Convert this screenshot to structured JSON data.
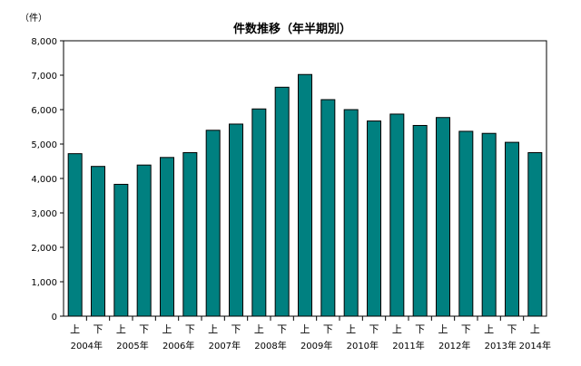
{
  "chart_data": {
    "type": "bar",
    "title": "件数推移（年半期別）",
    "ylabel": "（件）",
    "xlabel": "",
    "ylim": [
      0,
      8000
    ],
    "y_ticks": [
      "0",
      "1,000",
      "2,000",
      "3,000",
      "4,000",
      "5,000",
      "6,000",
      "7,000",
      "8,000"
    ],
    "half_labels": [
      "上",
      "下",
      "上",
      "下",
      "上",
      "下",
      "上",
      "下",
      "上",
      "下",
      "上",
      "下",
      "上",
      "下",
      "上",
      "下",
      "上",
      "下",
      "上",
      "下",
      "上"
    ],
    "year_labels": [
      "2004年",
      "2005年",
      "2006年",
      "2007年",
      "2008年",
      "2009年",
      "2010年",
      "2011年",
      "2012年",
      "2013年",
      "2014年"
    ],
    "values": [
      4720,
      4350,
      3830,
      4390,
      4610,
      4750,
      5400,
      5580,
      6020,
      6650,
      7020,
      6290,
      6000,
      5670,
      5870,
      5540,
      5770,
      5370,
      5310,
      5050,
      4750
    ],
    "bar_color": "#008080",
    "grid": false,
    "legend": "none"
  }
}
